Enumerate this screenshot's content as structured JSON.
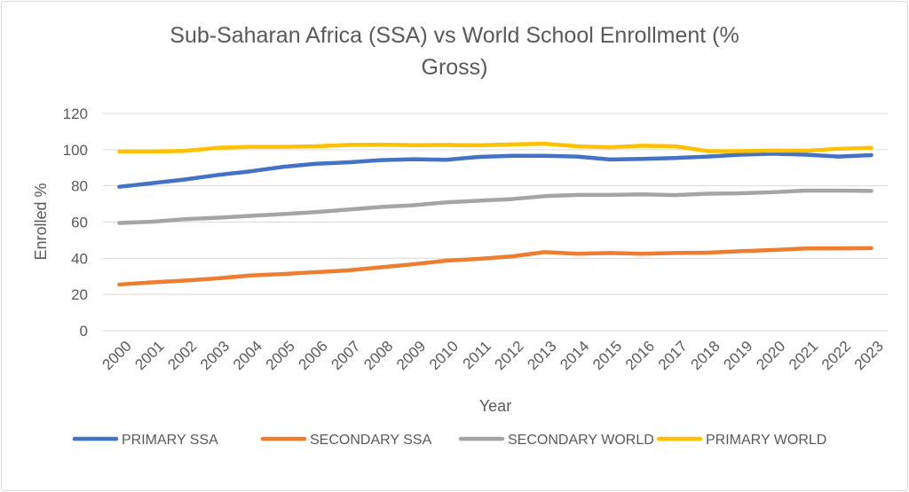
{
  "chart_data": {
    "type": "line",
    "title_lines": [
      "Sub-Saharan Africa (SSA) vs World School Enrollment (%",
      "Gross)"
    ],
    "xlabel": "Year",
    "ylabel": "Enrolled %",
    "ylim": [
      0,
      120
    ],
    "yticks": [
      "0",
      "20",
      "40",
      "60",
      "80",
      "100",
      "120"
    ],
    "grid": true,
    "legend_position": "bottom",
    "x": [
      "2000",
      "2001",
      "2002",
      "2003",
      "2004",
      "2005",
      "2006",
      "2007",
      "2008",
      "2009",
      "2010",
      "2011",
      "2012",
      "2013",
      "2014",
      "2015",
      "2016",
      "2017",
      "2018",
      "2019",
      "2020",
      "2021",
      "2022",
      "2023"
    ],
    "series": [
      {
        "name": "PRIMARY SSA",
        "color": "#4472c4",
        "values": [
          79.5,
          81.5,
          83.5,
          86,
          88,
          90.5,
          92.2,
          93,
          94.2,
          94.7,
          94.4,
          96,
          96.6,
          96.6,
          96.2,
          94.6,
          94.9,
          95.4,
          96.2,
          97.2,
          97.8,
          97.2,
          96.2,
          97
        ]
      },
      {
        "name": "SECONDARY SSA",
        "color": "#ed7d31",
        "values": [
          25.5,
          26.7,
          27.7,
          28.9,
          30.5,
          31.3,
          32.3,
          33.3,
          35,
          36.7,
          38.7,
          39.7,
          41,
          43.4,
          42.5,
          42.9,
          42.5,
          42.9,
          43.1,
          43.9,
          44.6,
          45.4,
          45.4,
          45.6
        ]
      },
      {
        "name": "SECONDARY WORLD",
        "color": "#a5a5a5",
        "values": [
          59.5,
          60.2,
          61.6,
          62.4,
          63.4,
          64.4,
          65.5,
          66.9,
          68.3,
          69.3,
          70.9,
          71.8,
          72.7,
          74.3,
          75,
          75,
          75.3,
          74.9,
          75.7,
          75.9,
          76.5,
          77.4,
          77.4,
          77.2
        ]
      },
      {
        "name": "PRIMARY WORLD",
        "color": "#ffc000",
        "values": [
          99,
          99,
          99.3,
          101,
          101.6,
          101.6,
          101.9,
          102.6,
          102.8,
          102.5,
          102.6,
          102.4,
          102.9,
          103.3,
          101.9,
          101.3,
          102.2,
          101.9,
          99.2,
          99.2,
          99.5,
          99.4,
          100.5,
          101
        ]
      }
    ]
  }
}
